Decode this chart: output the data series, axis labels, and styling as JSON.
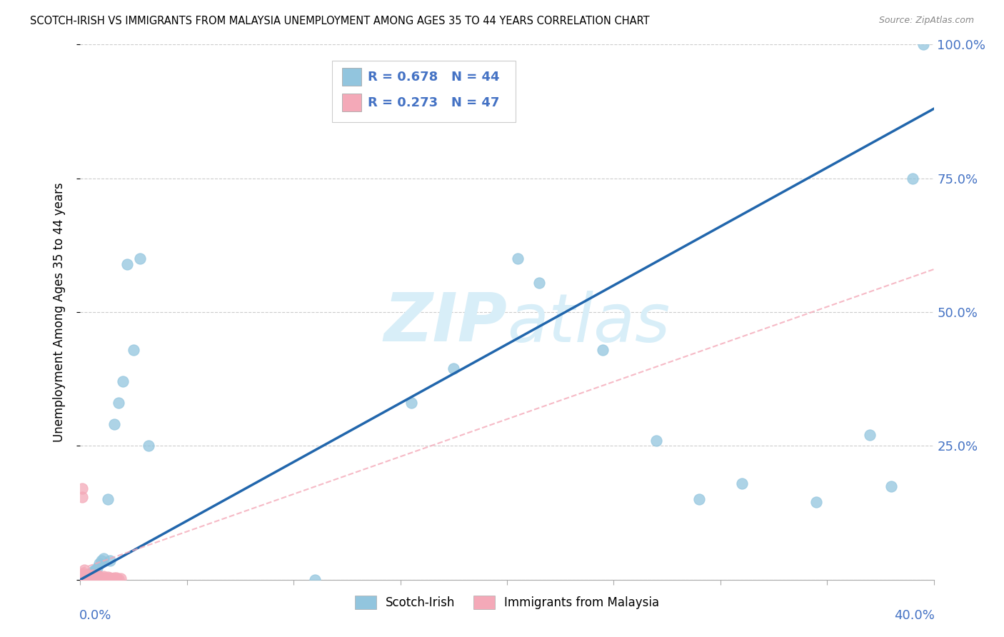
{
  "title": "SCOTCH-IRISH VS IMMIGRANTS FROM MALAYSIA UNEMPLOYMENT AMONG AGES 35 TO 44 YEARS CORRELATION CHART",
  "source": "Source: ZipAtlas.com",
  "ylabel": "Unemployment Among Ages 35 to 44 years",
  "xmin": 0.0,
  "xmax": 0.4,
  "ymin": 0.0,
  "ymax": 1.0,
  "ytick_vals": [
    0.0,
    0.25,
    0.5,
    0.75,
    1.0
  ],
  "ytick_labels": [
    "",
    "25.0%",
    "50.0%",
    "75.0%",
    "100.0%"
  ],
  "xtick_vals": [
    0.0,
    0.05,
    0.1,
    0.15,
    0.2,
    0.25,
    0.3,
    0.35,
    0.4
  ],
  "legend_r1": "R = 0.678   N = 44",
  "legend_r2": "R = 0.273   N = 47",
  "series1_label": "Scotch-Irish",
  "series2_label": "Immigrants from Malaysia",
  "color1": "#92C5DE",
  "color2": "#F4A9B8",
  "trendline1_color": "#2166AC",
  "trendline2_color": "#F4A9B8",
  "watermark": "ZIPAtlas",
  "watermark_color": "#D8EEF8",
  "scotch_irish_x": [
    0.001,
    0.001,
    0.001,
    0.001,
    0.002,
    0.002,
    0.002,
    0.002,
    0.002,
    0.003,
    0.003,
    0.003,
    0.003,
    0.003,
    0.003,
    0.004,
    0.004,
    0.004,
    0.004,
    0.004,
    0.005,
    0.005,
    0.005,
    0.005,
    0.006,
    0.006,
    0.006,
    0.006,
    0.007,
    0.007,
    0.008,
    0.008,
    0.009,
    0.01,
    0.011,
    0.013,
    0.014,
    0.016,
    0.018,
    0.02,
    0.022,
    0.025,
    0.028,
    0.032
  ],
  "scotch_irish_y": [
    0.002,
    0.005,
    0.001,
    0.003,
    0.004,
    0.001,
    0.006,
    0.002,
    0.005,
    0.003,
    0.008,
    0.004,
    0.002,
    0.007,
    0.001,
    0.01,
    0.006,
    0.003,
    0.008,
    0.002,
    0.012,
    0.005,
    0.009,
    0.003,
    0.015,
    0.008,
    0.004,
    0.001,
    0.018,
    0.006,
    0.022,
    0.009,
    0.03,
    0.035,
    0.04,
    0.15,
    0.035,
    0.29,
    0.33,
    0.37,
    0.59,
    0.43,
    0.6,
    0.25
  ],
  "scotch_irish_x2": [
    0.11,
    0.155,
    0.175,
    0.205,
    0.215,
    0.245,
    0.27,
    0.29,
    0.31,
    0.345,
    0.37,
    0.38,
    0.39,
    0.395
  ],
  "scotch_irish_y2": [
    0.0,
    0.33,
    0.395,
    0.6,
    0.555,
    0.43,
    0.26,
    0.15,
    0.18,
    0.145,
    0.27,
    0.175,
    0.75,
    1.0
  ],
  "malaysia_x": [
    0.001,
    0.001,
    0.001,
    0.001,
    0.001,
    0.002,
    0.002,
    0.002,
    0.002,
    0.002,
    0.002,
    0.003,
    0.003,
    0.003,
    0.003,
    0.003,
    0.004,
    0.004,
    0.004,
    0.004,
    0.005,
    0.005,
    0.005,
    0.005,
    0.006,
    0.006,
    0.006,
    0.007,
    0.007,
    0.007,
    0.008,
    0.008,
    0.008,
    0.009,
    0.009,
    0.01,
    0.01,
    0.011,
    0.011,
    0.012,
    0.013,
    0.014,
    0.015,
    0.016,
    0.017,
    0.018,
    0.019
  ],
  "malaysia_y": [
    0.003,
    0.01,
    0.155,
    0.17,
    0.005,
    0.018,
    0.001,
    0.008,
    0.012,
    0.003,
    0.006,
    0.002,
    0.009,
    0.001,
    0.005,
    0.003,
    0.004,
    0.007,
    0.001,
    0.003,
    0.008,
    0.002,
    0.006,
    0.004,
    0.009,
    0.001,
    0.005,
    0.003,
    0.008,
    0.002,
    0.006,
    0.004,
    0.009,
    0.001,
    0.005,
    0.003,
    0.002,
    0.006,
    0.004,
    0.001,
    0.005,
    0.003,
    0.002,
    0.004,
    0.003,
    0.001,
    0.002
  ],
  "si_trend_x": [
    0.0,
    0.4
  ],
  "si_trend_y": [
    0.0,
    0.88
  ],
  "mal_trend_x": [
    0.0,
    0.4
  ],
  "mal_trend_y": [
    0.02,
    0.58
  ]
}
